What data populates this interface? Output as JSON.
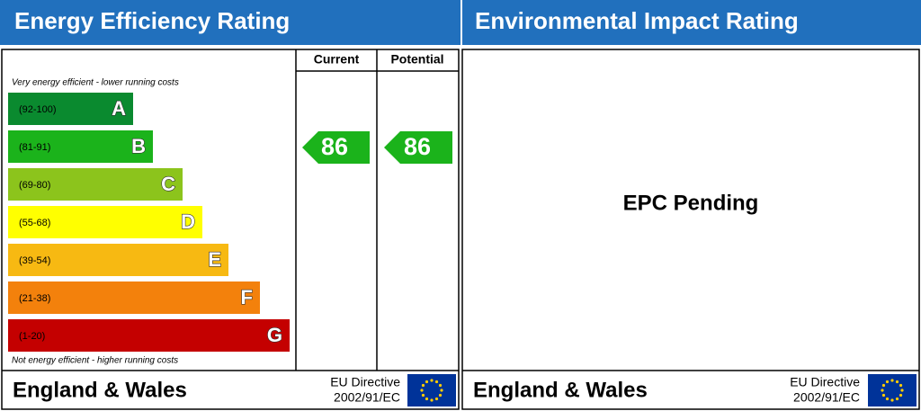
{
  "left": {
    "title": "Energy Efficiency Rating",
    "columns": [
      "Current",
      "Potential"
    ],
    "top_note": "Very energy efficient - lower running costs",
    "bottom_note": "Not energy efficient - higher running costs",
    "bands": [
      {
        "range": "(92-100)",
        "letter": "A"
      },
      {
        "range": "(81-91)",
        "letter": "B"
      },
      {
        "range": "(69-80)",
        "letter": "C"
      },
      {
        "range": "(55-68)",
        "letter": "D"
      },
      {
        "range": "(39-54)",
        "letter": "E"
      },
      {
        "range": "(21-38)",
        "letter": "F"
      },
      {
        "range": "(1-20)",
        "letter": "G"
      }
    ],
    "current": 86,
    "potential": 86,
    "footer": {
      "region": "England & Wales",
      "directive": [
        "EU Directive",
        "2002/91/EC"
      ]
    }
  },
  "right": {
    "title": "Environmental Impact Rating",
    "status": "EPC Pending",
    "footer": {
      "region": "England & Wales",
      "directive": [
        "EU Directive",
        "2002/91/EC"
      ]
    }
  }
}
